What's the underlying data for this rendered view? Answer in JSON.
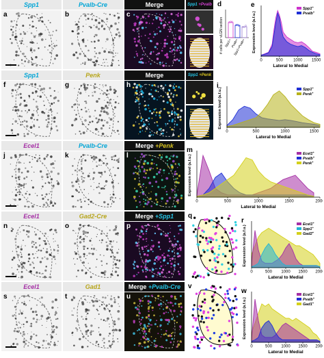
{
  "rows": [
    {
      "id": "row1",
      "panels": [
        {
          "letter": "a",
          "header": "Spp1",
          "header_color": "#00a5d6",
          "kind": "bright"
        },
        {
          "letter": "b",
          "header": "Pvalb-Cre",
          "header_color": "#00a5d6",
          "kind": "bright"
        },
        {
          "letter": "c",
          "header": "Merge",
          "header_color": "#ffffff",
          "kind": "dark-magenta"
        }
      ],
      "inset_labels": [
        "Spp1",
        "+Pvalb"
      ]
    },
    {
      "id": "row2",
      "panels": [
        {
          "letter": "f",
          "header": "Spp1",
          "header_color": "#00a5d6",
          "kind": "bright"
        },
        {
          "letter": "g",
          "header": "Penk",
          "header_color": "#b7a51a",
          "kind": "bright"
        },
        {
          "letter": "h",
          "header": "Merge",
          "header_color": "#ffffff",
          "kind": "dark-cyan"
        }
      ],
      "inset_labels": [
        "Spp1",
        "+Penk"
      ]
    },
    {
      "id": "row3",
      "panels": [
        {
          "letter": "j",
          "header": "Ecel1",
          "header_color": "#a52fa5",
          "kind": "bright"
        },
        {
          "letter": "k",
          "header": "Pvalb-Cre",
          "header_color": "#00a5d6",
          "kind": "bright"
        },
        {
          "letter": "l",
          "header": "Merge",
          "header_color": "#ffffff",
          "header_extra": "+Penk",
          "header_extra_color": "#d4c020",
          "kind": "dark-green"
        }
      ]
    },
    {
      "id": "row4",
      "panels": [
        {
          "letter": "n",
          "header": "Ecel1",
          "header_color": "#a52fa5",
          "kind": "bright"
        },
        {
          "letter": "o",
          "header": "Gad2-Cre",
          "header_color": "#b7a51a",
          "kind": "bright"
        },
        {
          "letter": "p",
          "header": "Merge",
          "header_color": "#ffffff",
          "header_extra": "+Spp1",
          "header_extra_color": "#26c6e8",
          "kind": "dark-magenta"
        }
      ]
    },
    {
      "id": "row5",
      "panels": [
        {
          "letter": "s",
          "header": "Ecel1",
          "header_color": "#a52fa5",
          "kind": "bright"
        },
        {
          "letter": "t",
          "header": "Gad1",
          "header_color": "#b7a51a",
          "kind": "bright"
        },
        {
          "letter": "u",
          "header": "Merge",
          "header_color": "#ffffff",
          "header_extra": "+Pvalb-Cre",
          "header_extra_color": "#26c6e8",
          "kind": "dark-yellow"
        }
      ]
    }
  ],
  "map_panels": [
    {
      "letter": "q"
    },
    {
      "letter": "v"
    }
  ],
  "bar_panel": {
    "letter": "d",
    "ylabel": "# cells per vLGN section",
    "categories": [
      "Spp1+",
      "Pvalb+",
      "Spp1+Pvalb+"
    ],
    "ylim": [
      0,
      300
    ]
  },
  "chart_data": [
    {
      "letter": "e",
      "type": "area",
      "xlabel": "Lateral to Medial",
      "ylabel": "Expression level (a.f.u.)",
      "xticks": [
        0,
        500,
        1000,
        1500
      ],
      "xlim": [
        0,
        1600
      ],
      "legend": [
        {
          "name": "Spp1",
          "sup": "+",
          "color": "#cc33cc"
        },
        {
          "name": "Pvalb",
          "sup": "+",
          "color": "#1f2fd6"
        }
      ],
      "series": [
        {
          "name": "Spp1",
          "color": "#cc33cc",
          "x": [
            0,
            100,
            200,
            300,
            350,
            400,
            450,
            500,
            550,
            600,
            700,
            800,
            900,
            1000,
            1100,
            1200,
            1300,
            1400,
            1500,
            1600
          ],
          "y": [
            0.02,
            0.05,
            0.08,
            0.25,
            0.55,
            0.8,
            0.95,
            0.85,
            0.7,
            0.5,
            0.4,
            0.35,
            0.3,
            0.28,
            0.3,
            0.25,
            0.18,
            0.1,
            0.08,
            0.05
          ]
        },
        {
          "name": "Pvalb",
          "color": "#1f2fd6",
          "x": [
            0,
            100,
            200,
            300,
            350,
            400,
            450,
            500,
            550,
            600,
            700,
            800,
            900,
            1000,
            1100,
            1200,
            1300,
            1400,
            1500,
            1600
          ],
          "y": [
            0.02,
            0.04,
            0.07,
            0.2,
            0.45,
            0.7,
            0.9,
            0.8,
            0.55,
            0.4,
            0.3,
            0.25,
            0.22,
            0.2,
            0.22,
            0.18,
            0.12,
            0.08,
            0.05,
            0.03
          ]
        }
      ]
    },
    {
      "letter": "i",
      "type": "area",
      "xlabel": "Lateral to Medial",
      "ylabel": "Expression level (a.f.u.)",
      "xticks": [
        0,
        500,
        1000,
        1500
      ],
      "xlim": [
        0,
        1600
      ],
      "legend": [
        {
          "name": "Spp1",
          "sup": "+",
          "color": "#1f2fd6"
        },
        {
          "name": "Penk",
          "sup": "+",
          "color": "#b7b21a"
        }
      ],
      "series": [
        {
          "name": "Spp1",
          "color": "#1f2fd6",
          "x": [
            0,
            100,
            200,
            300,
            400,
            500,
            600,
            700,
            800,
            900,
            1000,
            1100,
            1200,
            1300,
            1400,
            1500,
            1600
          ],
          "y": [
            0.05,
            0.2,
            0.45,
            0.55,
            0.5,
            0.35,
            0.25,
            0.22,
            0.2,
            0.18,
            0.2,
            0.18,
            0.15,
            0.12,
            0.1,
            0.08,
            0.05
          ]
        },
        {
          "name": "Penk",
          "color": "#b7b21a",
          "x": [
            0,
            100,
            200,
            300,
            400,
            500,
            600,
            700,
            800,
            900,
            1000,
            1100,
            1200,
            1300,
            1400,
            1500,
            1600
          ],
          "y": [
            0.02,
            0.05,
            0.1,
            0.15,
            0.2,
            0.25,
            0.4,
            0.6,
            0.85,
            0.95,
            0.8,
            0.6,
            0.45,
            0.3,
            0.2,
            0.12,
            0.08
          ]
        }
      ]
    },
    {
      "letter": "m",
      "type": "area",
      "xlabel": "Lateral to Medial",
      "ylabel": "Expression level (a.f.u.)",
      "xticks": [
        0,
        500,
        1000,
        1500,
        2000
      ],
      "xlim": [
        0,
        2000
      ],
      "legend": [
        {
          "name": "Ecel1",
          "sup": "+",
          "color": "#a52fa5"
        },
        {
          "name": "Pvalb",
          "sup": "+",
          "color": "#1f2fd6"
        },
        {
          "name": "Penk",
          "sup": "+",
          "color": "#d4d01a"
        }
      ],
      "series": [
        {
          "name": "Ecel1",
          "color": "#a52fa5",
          "x": [
            0,
            100,
            200,
            300,
            400,
            500,
            600,
            700,
            800,
            900,
            1000,
            1100,
            1200,
            1300,
            1400,
            1500,
            1600,
            1700,
            1800,
            1900
          ],
          "y": [
            0.05,
            0.95,
            0.6,
            0.2,
            0.1,
            0.05,
            0.05,
            0.05,
            0.05,
            0.05,
            0.1,
            0.15,
            0.2,
            0.3,
            0.4,
            0.45,
            0.5,
            0.35,
            0.2,
            0.1
          ]
        },
        {
          "name": "Pvalb",
          "color": "#1f2fd6",
          "x": [
            0,
            100,
            200,
            300,
            400,
            500,
            600,
            700,
            800,
            900,
            1000,
            1100,
            1200,
            1300,
            1400,
            1500,
            1600,
            1700,
            1800,
            1900
          ],
          "y": [
            0.02,
            0.05,
            0.2,
            0.45,
            0.55,
            0.35,
            0.2,
            0.1,
            0.05,
            0.05,
            0.05,
            0.05,
            0.05,
            0.05,
            0.05,
            0.05,
            0.05,
            0.05,
            0.05,
            0.02
          ]
        },
        {
          "name": "Penk",
          "color": "#d4d01a",
          "x": [
            0,
            100,
            200,
            300,
            400,
            500,
            600,
            700,
            800,
            900,
            1000,
            1100,
            1200,
            1300,
            1400,
            1500,
            1600,
            1700,
            1800,
            1900
          ],
          "y": [
            0.02,
            0.05,
            0.1,
            0.2,
            0.3,
            0.4,
            0.5,
            0.7,
            0.9,
            0.85,
            0.6,
            0.45,
            0.35,
            0.3,
            0.25,
            0.2,
            0.15,
            0.1,
            0.05,
            0.02
          ]
        }
      ]
    },
    {
      "letter": "r",
      "type": "area",
      "xlabel": "Lateral to Medial",
      "ylabel": "Expression level (a.f.u.)",
      "xticks": [
        0,
        500,
        1000,
        1500,
        2000
      ],
      "xlim": [
        0,
        2000
      ],
      "legend": [
        {
          "name": "Ecel1",
          "sup": "+",
          "color": "#a52fa5"
        },
        {
          "name": "Spp1",
          "sup": "+",
          "color": "#1fb5d6"
        },
        {
          "name": "Gad2",
          "sup": "+",
          "color": "#d4d01a"
        }
      ],
      "series": [
        {
          "name": "Gad2",
          "color": "#d4d01a",
          "x": [
            0,
            100,
            200,
            300,
            400,
            500,
            600,
            700,
            800,
            900,
            1000,
            1100,
            1200,
            1300,
            1400,
            1500,
            1600,
            1700,
            1800,
            1900,
            2000
          ],
          "y": [
            0.3,
            0.5,
            0.7,
            0.8,
            0.85,
            0.9,
            0.85,
            0.8,
            0.75,
            0.7,
            0.65,
            0.6,
            0.55,
            0.5,
            0.5,
            0.45,
            0.4,
            0.35,
            0.3,
            0.2,
            0.1
          ]
        },
        {
          "name": "Ecel1",
          "color": "#a52fa5",
          "x": [
            0,
            100,
            200,
            300,
            400,
            500,
            600,
            700,
            800,
            900,
            1000,
            1100,
            1200,
            1300,
            1400,
            1500,
            1600,
            1700,
            1800,
            1900,
            2000
          ],
          "y": [
            0.1,
            0.85,
            0.4,
            0.15,
            0.1,
            0.1,
            0.1,
            0.15,
            0.2,
            0.3,
            0.45,
            0.55,
            0.4,
            0.2,
            0.1,
            0.05,
            0.05,
            0.05,
            0.05,
            0.05,
            0.02
          ]
        },
        {
          "name": "Spp1",
          "color": "#1fb5d6",
          "x": [
            0,
            100,
            200,
            300,
            400,
            500,
            600,
            700,
            800,
            900,
            1000,
            1100,
            1200,
            1300,
            1400,
            1500,
            1600,
            1700,
            1800,
            1900,
            2000
          ],
          "y": [
            0.02,
            0.05,
            0.1,
            0.3,
            0.45,
            0.55,
            0.45,
            0.3,
            0.2,
            0.1,
            0.05,
            0.05,
            0.05,
            0.05,
            0.05,
            0.05,
            0.05,
            0.05,
            0.05,
            0.05,
            0.02
          ]
        }
      ]
    },
    {
      "letter": "w",
      "type": "area",
      "xlabel": "Lateral to Medial",
      "ylabel": "Expression level (a.f.u.)",
      "xticks": [
        0,
        500,
        1000,
        1500,
        2000
      ],
      "xlim": [
        0,
        2000
      ],
      "legend": [
        {
          "name": "Ecel1",
          "sup": "+",
          "color": "#a52fa5"
        },
        {
          "name": "Pvalb",
          "sup": "+",
          "color": "#1f2fd6"
        },
        {
          "name": "Gad1",
          "sup": "+",
          "color": "#d4d01a"
        }
      ],
      "series": [
        {
          "name": "Gad1",
          "color": "#d4d01a",
          "x": [
            0,
            100,
            200,
            300,
            400,
            500,
            600,
            700,
            800,
            900,
            1000,
            1100,
            1200,
            1300,
            1400,
            1500,
            1600,
            1700,
            1800,
            1900,
            2000
          ],
          "y": [
            0.2,
            0.4,
            0.6,
            0.8,
            0.75,
            0.8,
            0.7,
            0.65,
            0.6,
            0.55,
            0.5,
            0.5,
            0.45,
            0.5,
            0.45,
            0.4,
            0.35,
            0.3,
            0.2,
            0.15,
            0.05
          ]
        },
        {
          "name": "Ecel1",
          "color": "#a52fa5",
          "x": [
            0,
            100,
            200,
            300,
            400,
            500,
            600,
            700,
            800,
            900,
            1000,
            1100,
            1200,
            1300,
            1400,
            1500,
            1600,
            1700,
            1800,
            1900,
            2000
          ],
          "y": [
            0.05,
            0.9,
            0.45,
            0.15,
            0.1,
            0.1,
            0.1,
            0.15,
            0.25,
            0.35,
            0.4,
            0.35,
            0.3,
            0.25,
            0.2,
            0.15,
            0.1,
            0.05,
            0.05,
            0.05,
            0.02
          ]
        },
        {
          "name": "Pvalb",
          "color": "#1f2fd6",
          "x": [
            0,
            100,
            200,
            300,
            400,
            500,
            600,
            700,
            800,
            900,
            1000,
            1100,
            1200,
            1300,
            1400,
            1500,
            1600,
            1700,
            1800,
            1900,
            2000
          ],
          "y": [
            0.02,
            0.05,
            0.1,
            0.3,
            0.4,
            0.45,
            0.35,
            0.2,
            0.1,
            0.05,
            0.05,
            0.05,
            0.05,
            0.05,
            0.05,
            0.05,
            0.05,
            0.05,
            0.05,
            0.05,
            0.02
          ]
        }
      ]
    }
  ]
}
